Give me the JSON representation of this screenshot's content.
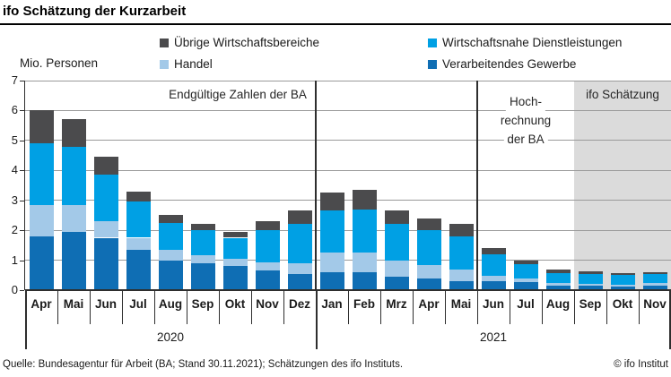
{
  "title": "ifo Schätzung der Kurzarbeit",
  "axis_label": "Mio. Personen",
  "legend": [
    {
      "label": "Übrige Wirtschaftsbereiche",
      "color": "#4b4b4d"
    },
    {
      "label": "Wirtschaftsnahe Dienstleistungen",
      "color": "#00a0e4"
    },
    {
      "label": "Handel",
      "color": "#a3c9e8"
    },
    {
      "label": "Verarbeitendes Gewerbe",
      "color": "#0f6eb4"
    }
  ],
  "chart_data": {
    "type": "bar",
    "stacked": true,
    "title": "ifo Schätzung der Kurzarbeit",
    "ylabel": "Mio. Personen",
    "ylim": [
      0,
      7
    ],
    "yticks": [
      0,
      1,
      2,
      3,
      4,
      5,
      6,
      7
    ],
    "grid": true,
    "categories": [
      "Apr",
      "Mai",
      "Jun",
      "Jul",
      "Aug",
      "Sep",
      "Okt",
      "Nov",
      "Dez",
      "Jan",
      "Feb",
      "Mrz",
      "Apr",
      "Mai",
      "Jun",
      "Jul",
      "Aug",
      "Sep",
      "Okt",
      "Nov"
    ],
    "years": [
      {
        "label": "2020",
        "from": 0,
        "to": 9
      },
      {
        "label": "2021",
        "from": 9,
        "to": 20
      }
    ],
    "series": [
      {
        "name": "Verarbeitendes Gewerbe",
        "color": "#0f6eb4",
        "values": [
          1.8,
          1.95,
          1.75,
          1.35,
          1.0,
          0.9,
          0.8,
          0.65,
          0.55,
          0.6,
          0.6,
          0.45,
          0.4,
          0.3,
          0.3,
          0.27,
          0.15,
          0.14,
          0.12,
          0.15
        ]
      },
      {
        "name": "Handel",
        "color": "#a3c9e8",
        "values": [
          1.05,
          0.9,
          0.55,
          0.4,
          0.35,
          0.27,
          0.25,
          0.27,
          0.35,
          0.65,
          0.65,
          0.55,
          0.45,
          0.4,
          0.18,
          0.13,
          0.1,
          0.08,
          0.07,
          0.08
        ]
      },
      {
        "name": "Wirtschaftsnahe Dienstleistungen",
        "color": "#00a0e4",
        "values": [
          2.05,
          1.95,
          1.55,
          1.2,
          0.9,
          0.83,
          0.7,
          1.08,
          1.3,
          1.4,
          1.45,
          1.2,
          1.15,
          1.1,
          0.72,
          0.47,
          0.33,
          0.33,
          0.33,
          0.32
        ]
      },
      {
        "name": "Übrige Wirtschaftsbereiche",
        "color": "#4b4b4d",
        "values": [
          1.1,
          0.9,
          0.6,
          0.35,
          0.25,
          0.2,
          0.2,
          0.3,
          0.45,
          0.6,
          0.65,
          0.45,
          0.4,
          0.4,
          0.22,
          0.13,
          0.12,
          0.08,
          0.06,
          0.05
        ]
      }
    ],
    "dividers_before_index": [
      9,
      14
    ],
    "shaded_from_index": 17,
    "shade_color": "#dbdbdb",
    "annotations": {
      "final_ba": "Endgültige Zahlen der BA",
      "hochrechnung_lines": [
        "Hoch-",
        "rechnung",
        "der BA"
      ],
      "ifo": "ifo Schätzung"
    }
  },
  "footer": {
    "source": "Quelle: Bundesagentur für Arbeit (BA; Stand 30.11.2021); Schätzungen des ifo Instituts.",
    "copyright": "© ifo Institut"
  }
}
